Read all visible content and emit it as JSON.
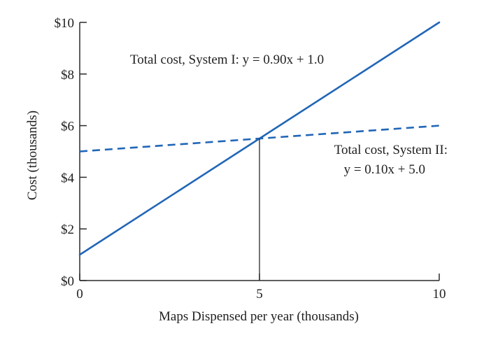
{
  "chart_data": {
    "type": "line",
    "x": [
      0,
      10
    ],
    "series": [
      {
        "values": [
          1.0,
          10.0
        ],
        "color": "#2166b7",
        "line_style": "solid"
      },
      {
        "values": [
          5.0,
          6.0
        ],
        "color": "#2166b7",
        "line_style": "dashed"
      }
    ],
    "intersection": {
      "x": 5,
      "y": 5.5
    },
    "xlim": [
      0,
      10
    ],
    "ylim": [
      0,
      10
    ],
    "xticks": [
      {
        "value": 0,
        "label": "0"
      },
      {
        "value": 5,
        "label": "5"
      },
      {
        "value": 10,
        "label": "10"
      }
    ],
    "yticks": [
      {
        "value": 0,
        "label": "$0"
      },
      {
        "value": 2,
        "label": "$2"
      },
      {
        "value": 4,
        "label": "$4"
      },
      {
        "value": 6,
        "label": "$6"
      },
      {
        "value": 8,
        "label": "$8"
      },
      {
        "value": 10,
        "label": "$10"
      }
    ],
    "xlabel": "Maps Dispensed per year (thousands)",
    "ylabel": "Cost (thousands)",
    "annotations": {
      "system1": "Total cost, System I: y = 0.90x + 1.0",
      "system2_line1": "Total cost, System II:",
      "system2_line2": "y = 0.10x + 5.0"
    },
    "grid": false
  }
}
